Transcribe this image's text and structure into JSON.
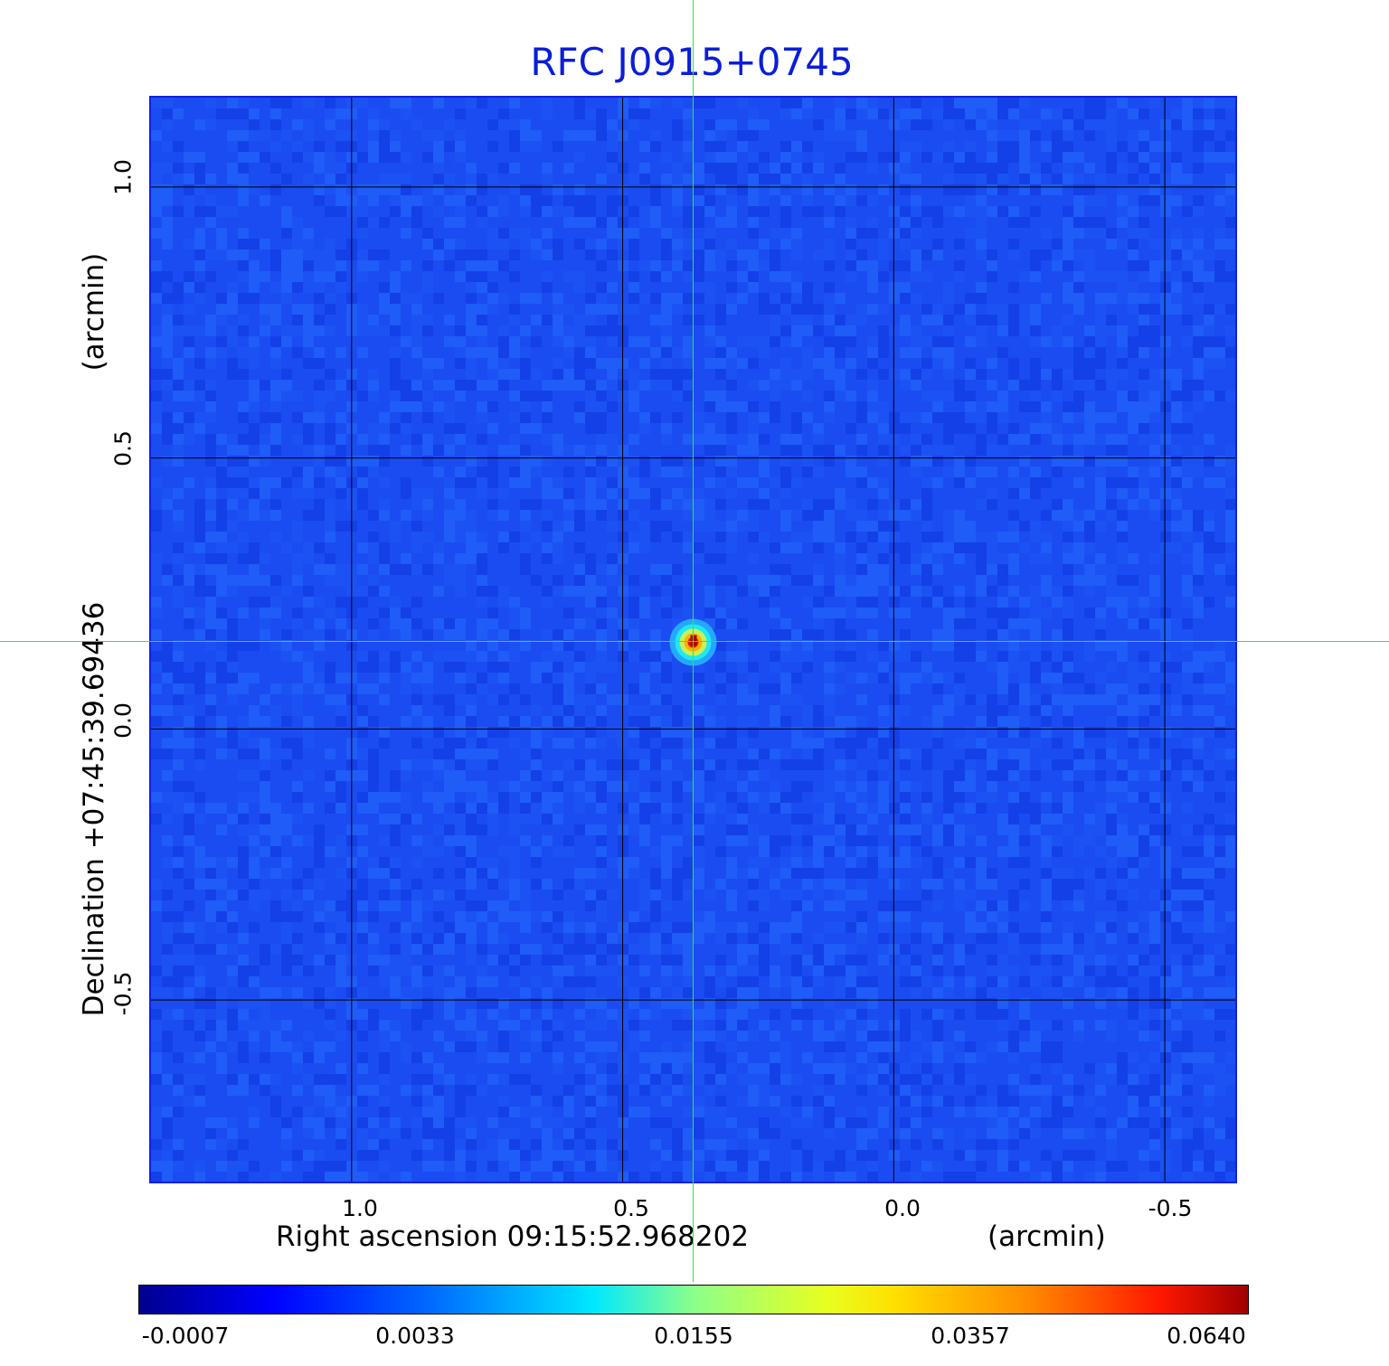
{
  "chart_data": {
    "type": "heatmap",
    "title": "RFC J0915+0745",
    "xlabel": "Right ascension  09:15:52.968202",
    "xunit": "(arcmin)",
    "ylabel": "Declination  +07:45:39.69436",
    "yunit": "(arcmin)",
    "x_ticks": [
      "1.0",
      "0.5",
      "0.0",
      "-0.5"
    ],
    "y_ticks": [
      "1.0",
      "0.5",
      "0.0",
      "-0.5"
    ],
    "xlim": [
      1.37,
      -0.63
    ],
    "ylim": [
      -0.835,
      1.165
    ],
    "grid": true,
    "source": {
      "x": 0.37,
      "y": 0.16,
      "peak": 0.064
    },
    "colorscale": "jet",
    "colorbar_ticks": [
      "-0.0007",
      "0.0033",
      "0.0155",
      "0.0357",
      "0.0640"
    ]
  },
  "colors": {
    "title": "#0a1ed8",
    "crosshair": "#33e633",
    "background": "#1a4cf2",
    "grid": "#000000"
  }
}
